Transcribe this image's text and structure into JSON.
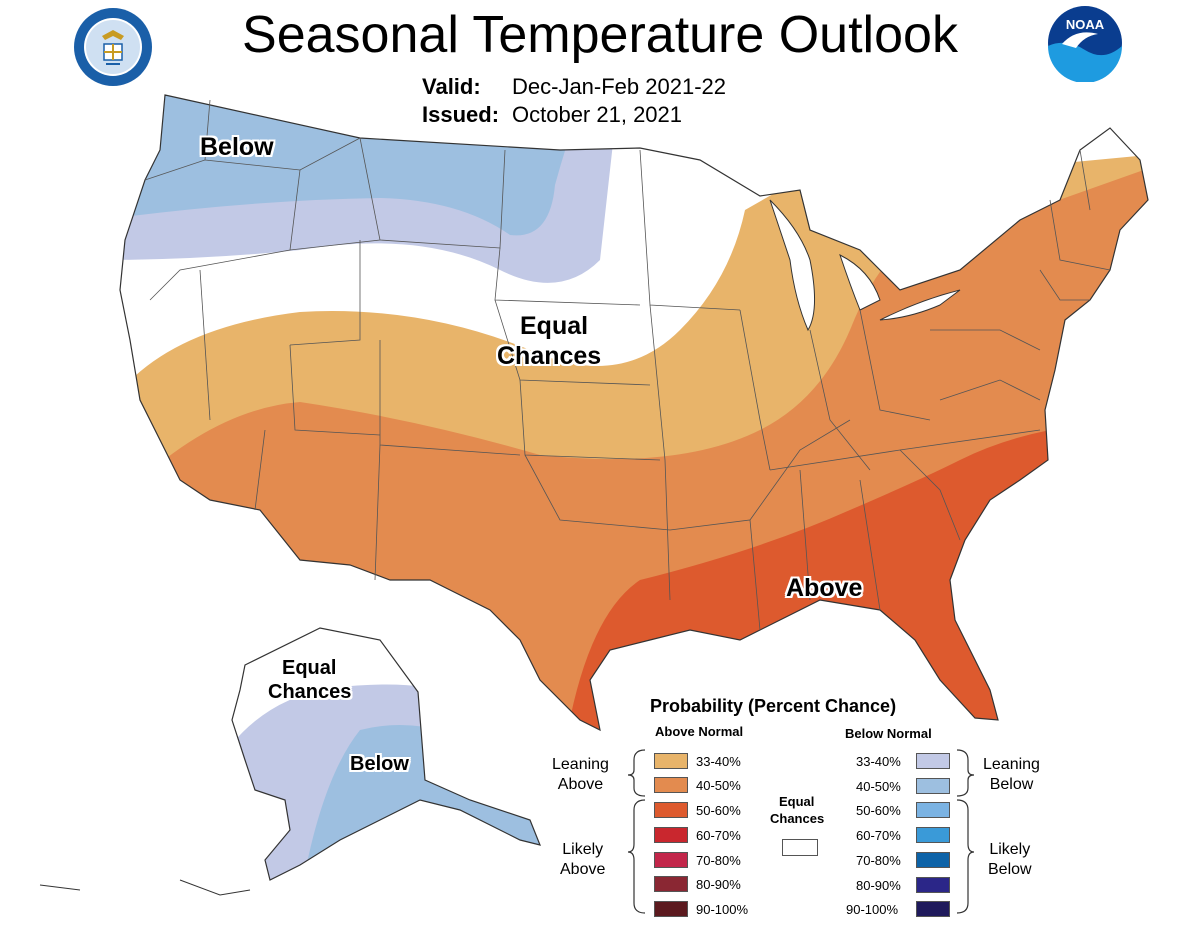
{
  "title": "Seasonal Temperature Outlook",
  "valid": {
    "label": "Valid:",
    "value": "Dec-Jan-Feb 2021-22"
  },
  "issued": {
    "label": "Issued:",
    "value": "October 21, 2021"
  },
  "logos": {
    "left": {
      "text": "DEPARTMENT OF COMMERCE · UNITED STATES OF AMERICA",
      "colors": [
        "#1a5fa8",
        "#c89b22"
      ]
    },
    "right": {
      "text": "NOAA",
      "colors": [
        "#0a3d8f",
        "#1e9be0"
      ]
    }
  },
  "map_labels": {
    "below_nw": "Below",
    "equal_chances_1": "Equal",
    "equal_chances_2": "Chances",
    "above_se": "Above",
    "ak_equal_1": "Equal",
    "ak_equal_2": "Chances",
    "ak_below": "Below"
  },
  "legend": {
    "title": "Probability (Percent Chance)",
    "above_header": "Above Normal",
    "below_header": "Below Normal",
    "equal_label_1": "Equal",
    "equal_label_2": "Chances",
    "leaning_above_1": "Leaning",
    "leaning_above_2": "Above",
    "likely_above_1": "Likely",
    "likely_above_2": "Above",
    "leaning_below_1": "Leaning",
    "leaning_below_2": "Below",
    "likely_below_1": "Likely",
    "likely_below_2": "Below",
    "above": [
      {
        "range": "33-40%",
        "color": "#e8b46a"
      },
      {
        "range": "40-50%",
        "color": "#e38b4f"
      },
      {
        "range": "50-60%",
        "color": "#dd5a2e"
      },
      {
        "range": "60-70%",
        "color": "#c9272e"
      },
      {
        "range": "70-80%",
        "color": "#c2264a"
      },
      {
        "range": "80-90%",
        "color": "#8a2733"
      },
      {
        "range": "90-100%",
        "color": "#5c1a1f"
      }
    ],
    "below": [
      {
        "range": "33-40%",
        "color": "#c2c9e6"
      },
      {
        "range": "40-50%",
        "color": "#9dbfe0"
      },
      {
        "range": "50-60%",
        "color": "#7bb3e3"
      },
      {
        "range": "60-70%",
        "color": "#3a9ad8"
      },
      {
        "range": "70-80%",
        "color": "#0d63a8"
      },
      {
        "range": "80-90%",
        "color": "#2b2688"
      },
      {
        "range": "90-100%",
        "color": "#1f1a5c"
      }
    ],
    "equal_color": "#ffffff"
  }
}
